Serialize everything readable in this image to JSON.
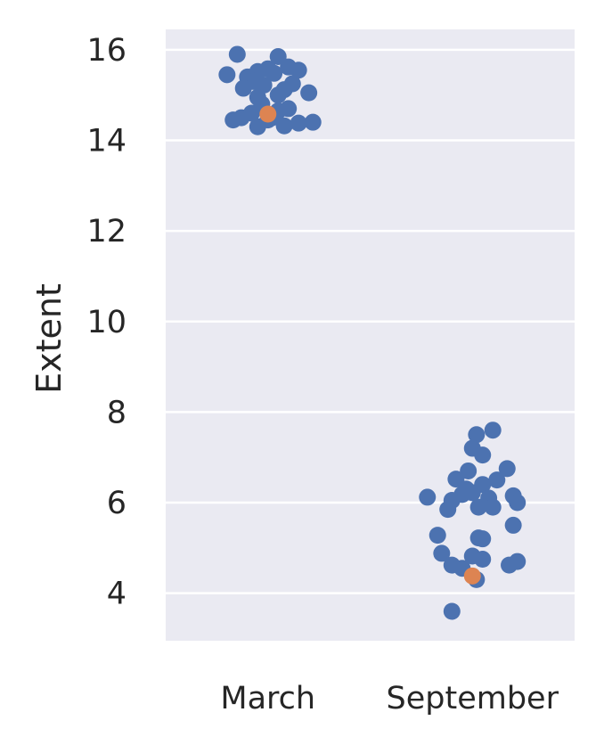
{
  "chart_data": {
    "type": "scatter",
    "subtype": "strip",
    "title": "",
    "xlabel": "",
    "ylabel": "Extent",
    "categories": [
      "March",
      "September"
    ],
    "ylim": [
      2.95,
      16.45
    ],
    "yticks": [
      4,
      6,
      8,
      10,
      12,
      14,
      16
    ],
    "grid": true,
    "legend": "none",
    "colors": {
      "background": "#eaeaf2",
      "grid": "#ffffff",
      "points": "#4c72b0",
      "highlight": "#dd8452",
      "text": "#262626"
    },
    "series": [
      {
        "category": "March",
        "points": [
          [
            -0.15,
            15.9
          ],
          [
            0.05,
            15.85
          ],
          [
            0.1,
            15.62
          ],
          [
            0.0,
            15.58
          ],
          [
            -0.05,
            15.52
          ],
          [
            0.03,
            15.48
          ],
          [
            -0.2,
            15.45
          ],
          [
            0.15,
            15.55
          ],
          [
            -0.1,
            15.4
          ],
          [
            -0.07,
            15.3
          ],
          [
            0.12,
            15.25
          ],
          [
            -0.02,
            15.22
          ],
          [
            0.08,
            15.12
          ],
          [
            -0.12,
            15.15
          ],
          [
            0.2,
            15.05
          ],
          [
            0.05,
            15.0
          ],
          [
            -0.05,
            14.95
          ],
          [
            -0.03,
            14.8
          ],
          [
            0.1,
            14.7
          ],
          [
            -0.08,
            14.6
          ],
          [
            -0.13,
            14.5
          ],
          [
            -0.17,
            14.45
          ],
          [
            0.0,
            14.45
          ],
          [
            0.15,
            14.38
          ],
          [
            0.08,
            14.32
          ],
          [
            -0.05,
            14.3
          ],
          [
            0.22,
            14.4
          ],
          [
            0.05,
            14.65
          ],
          [
            0.02,
            14.5
          ]
        ],
        "highlight": [
          [
            0.0,
            14.58
          ]
        ]
      },
      {
        "category": "September",
        "points": [
          [
            0.02,
            7.5
          ],
          [
            0.1,
            7.6
          ],
          [
            0.0,
            7.2
          ],
          [
            0.05,
            7.05
          ],
          [
            0.17,
            6.75
          ],
          [
            -0.02,
            6.7
          ],
          [
            0.12,
            6.5
          ],
          [
            -0.08,
            6.52
          ],
          [
            0.05,
            6.4
          ],
          [
            -0.03,
            6.3
          ],
          [
            -0.05,
            6.18
          ],
          [
            0.0,
            6.22
          ],
          [
            -0.22,
            6.12
          ],
          [
            0.08,
            6.1
          ],
          [
            0.2,
            6.15
          ],
          [
            -0.1,
            6.05
          ],
          [
            0.22,
            6.0
          ],
          [
            0.1,
            5.9
          ],
          [
            -0.12,
            5.85
          ],
          [
            0.03,
            5.9
          ],
          [
            0.2,
            5.5
          ],
          [
            -0.17,
            5.28
          ],
          [
            0.03,
            5.22
          ],
          [
            0.05,
            5.2
          ],
          [
            -0.15,
            4.88
          ],
          [
            0.0,
            4.82
          ],
          [
            0.05,
            4.75
          ],
          [
            0.22,
            4.7
          ],
          [
            0.18,
            4.62
          ],
          [
            -0.1,
            4.62
          ],
          [
            -0.05,
            4.55
          ],
          [
            0.02,
            4.3
          ],
          [
            -0.1,
            3.6
          ]
        ],
        "highlight": [
          [
            0.0,
            4.38
          ]
        ]
      }
    ]
  }
}
